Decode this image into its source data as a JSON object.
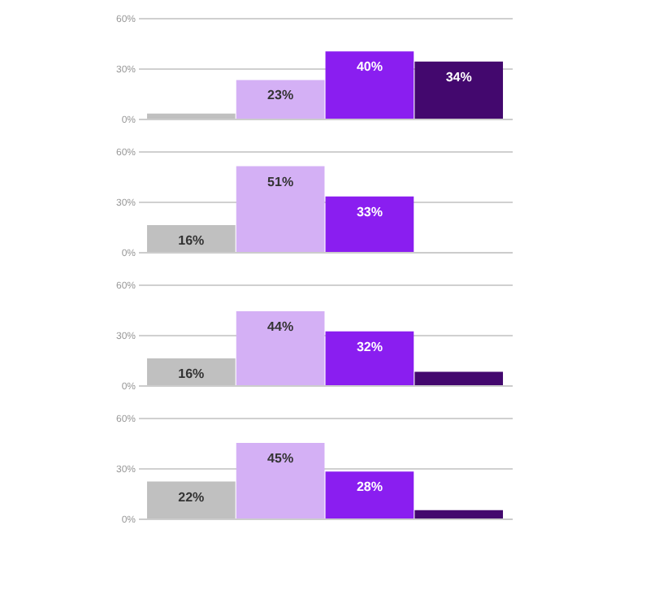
{
  "chart_data": [
    {
      "type": "bar",
      "categories": [
        null,
        null,
        null,
        null
      ],
      "colors": [
        "#c0c0c0",
        "#d4b0f5",
        "#8a1ef0",
        "#43086e"
      ],
      "values": [
        3,
        23,
        40,
        34
      ],
      "value_labels": [
        null,
        "23%",
        "40%",
        "34%"
      ],
      "ylim": [
        0,
        60
      ],
      "yticks": [
        {
          "value": 0,
          "label": "0%"
        },
        {
          "value": 30,
          "label": "30%"
        },
        {
          "value": 60,
          "label": "60%"
        }
      ],
      "grid": "y",
      "tick_labels": "y"
    },
    {
      "type": "bar",
      "categories": [
        null,
        null,
        null,
        null
      ],
      "colors": [
        "#c0c0c0",
        "#d4b0f5",
        "#8a1ef0",
        "#43086e"
      ],
      "values": [
        16,
        51,
        33,
        null
      ],
      "value_labels": [
        "16%",
        "51%",
        "33%",
        null
      ],
      "ylim": [
        0,
        60
      ],
      "yticks": [
        {
          "value": 0,
          "label": "0%"
        },
        {
          "value": 30,
          "label": "30%"
        },
        {
          "value": 60,
          "label": "60%"
        }
      ],
      "grid": "y",
      "tick_labels": "y"
    },
    {
      "type": "bar",
      "categories": [
        null,
        null,
        null,
        null
      ],
      "colors": [
        "#c0c0c0",
        "#d4b0f5",
        "#8a1ef0",
        "#43086e"
      ],
      "values": [
        16,
        44,
        32,
        8
      ],
      "value_labels": [
        "16%",
        "44%",
        "32%",
        null
      ],
      "ylim": [
        0,
        60
      ],
      "yticks": [
        {
          "value": 0,
          "label": "0%"
        },
        {
          "value": 30,
          "label": "30%"
        },
        {
          "value": 60,
          "label": "60%"
        }
      ],
      "grid": "y",
      "tick_labels": "y"
    },
    {
      "type": "bar",
      "categories": [
        null,
        null,
        null,
        null
      ],
      "colors": [
        "#c0c0c0",
        "#d4b0f5",
        "#8a1ef0",
        "#43086e"
      ],
      "values": [
        22,
        45,
        28,
        5
      ],
      "value_labels": [
        "22%",
        "45%",
        "28%",
        null
      ],
      "ylim": [
        0,
        60
      ],
      "yticks": [
        {
          "value": 0,
          "label": "0%"
        },
        {
          "value": 30,
          "label": "30%"
        },
        {
          "value": 60,
          "label": "60%"
        }
      ],
      "grid": "y",
      "tick_labels": "y"
    }
  ]
}
